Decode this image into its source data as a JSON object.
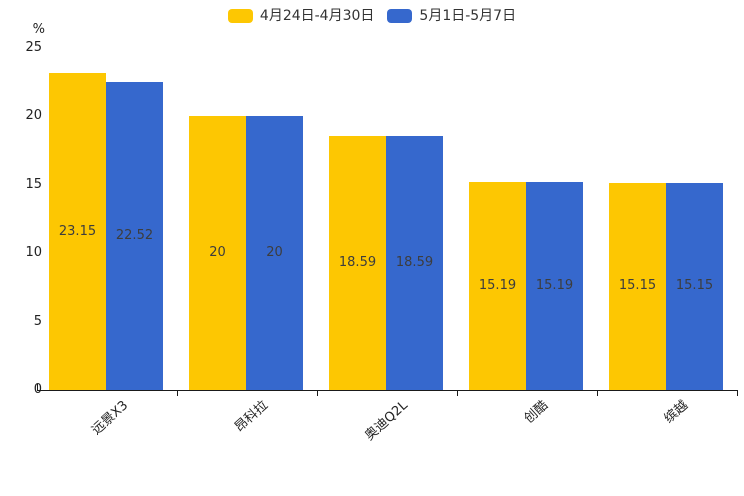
{
  "legend": [
    {
      "label": "4月24日-4月30日",
      "color": "#FDC702"
    },
    {
      "label": "5月1日-5月7日",
      "color": "#3668CD"
    }
  ],
  "chart_data": {
    "type": "bar",
    "title": "",
    "categories": [
      "远景X3",
      "昂科拉",
      "奥迪Q2L",
      "创酷",
      "缤越"
    ],
    "series": [
      {
        "name": "4月24日-4月30日",
        "color": "#FDC702",
        "values": [
          23.15,
          20,
          18.59,
          15.19,
          15.15
        ]
      },
      {
        "name": "5月1日-5月7日",
        "color": "#3668CD",
        "values": [
          22.52,
          20,
          18.59,
          15.19,
          15.15
        ]
      }
    ],
    "xlabel": "",
    "ylabel": "%",
    "ylim": [
      0,
      25
    ],
    "y_ticks": [
      0,
      5,
      10,
      15,
      20,
      25
    ],
    "grid": false,
    "legend_position": "top-center",
    "value_labels": "inside-center",
    "x_label_rotation_deg": -42
  }
}
